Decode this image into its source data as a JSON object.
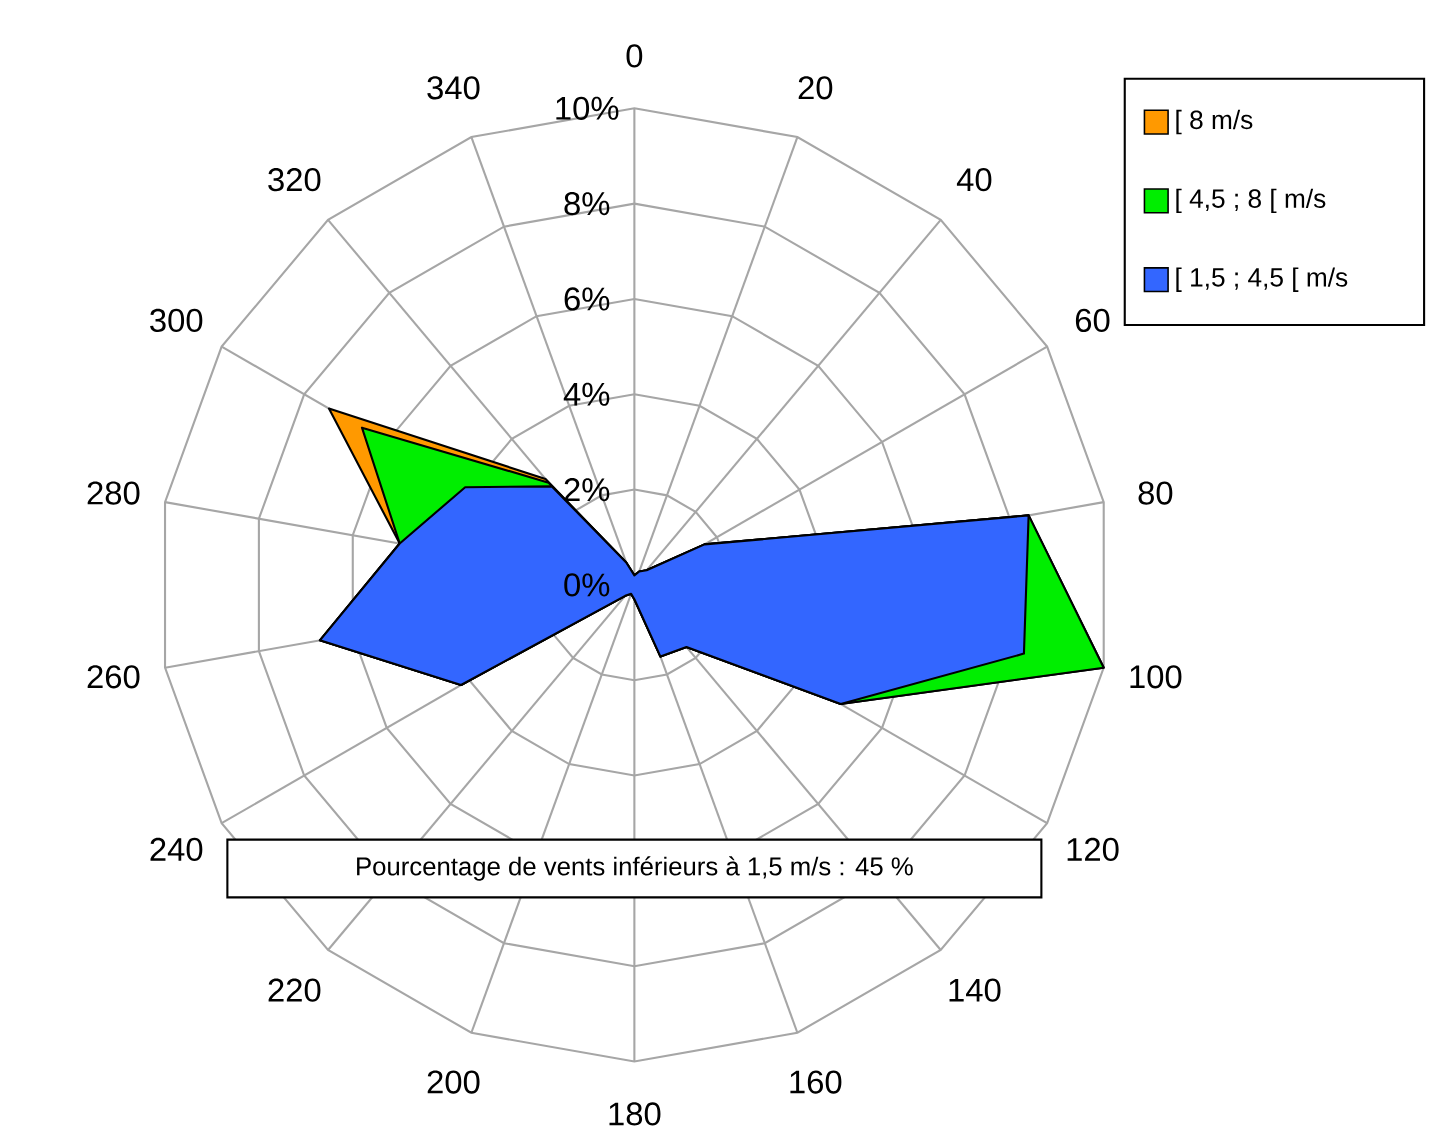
{
  "chart_data": {
    "type": "radar",
    "categories": [
      "0",
      "20",
      "40",
      "60",
      "80",
      "100",
      "120",
      "140",
      "160",
      "180",
      "200",
      "220",
      "240",
      "260",
      "280",
      "300",
      "320",
      "340"
    ],
    "series": [
      {
        "name": "[ 8 m/s",
        "color": "#ff9900",
        "values": [
          0.2,
          0.3,
          0.4,
          1.7,
          8.4,
          10.0,
          5.0,
          1.7,
          1.6,
          0.3,
          0.2,
          0.3,
          4.2,
          6.7,
          5.0,
          7.4,
          2.9,
          0.5
        ]
      },
      {
        "name": "[ 4,5 ; 8 [ m/s",
        "color": "#00ee00",
        "values": [
          0.2,
          0.3,
          0.4,
          1.7,
          8.4,
          10.0,
          5.0,
          1.7,
          1.6,
          0.3,
          0.2,
          0.3,
          4.2,
          6.7,
          5.0,
          6.6,
          2.8,
          0.5
        ]
      },
      {
        "name": "[ 1,5 ; 4,5 [ m/s",
        "color": "#3366ff",
        "values": [
          0.2,
          0.3,
          0.4,
          1.7,
          8.4,
          8.3,
          5.0,
          1.7,
          1.6,
          0.3,
          0.2,
          0.3,
          4.2,
          6.7,
          5.0,
          4.1,
          2.7,
          0.5
        ]
      }
    ],
    "ylim": [
      0,
      10
    ],
    "yticks": [
      {
        "value": 0,
        "label": "0%"
      },
      {
        "value": 2,
        "label": "2%"
      },
      {
        "value": 4,
        "label": "4%"
      },
      {
        "value": 6,
        "label": "6%"
      },
      {
        "value": 8,
        "label": "8%"
      },
      {
        "value": 10,
        "label": "10%"
      }
    ],
    "grid": true,
    "legend": "top right",
    "annotations": [
      "Pourcentage de vents inférieurs à 1,5 m/s : 45 %"
    ]
  }
}
